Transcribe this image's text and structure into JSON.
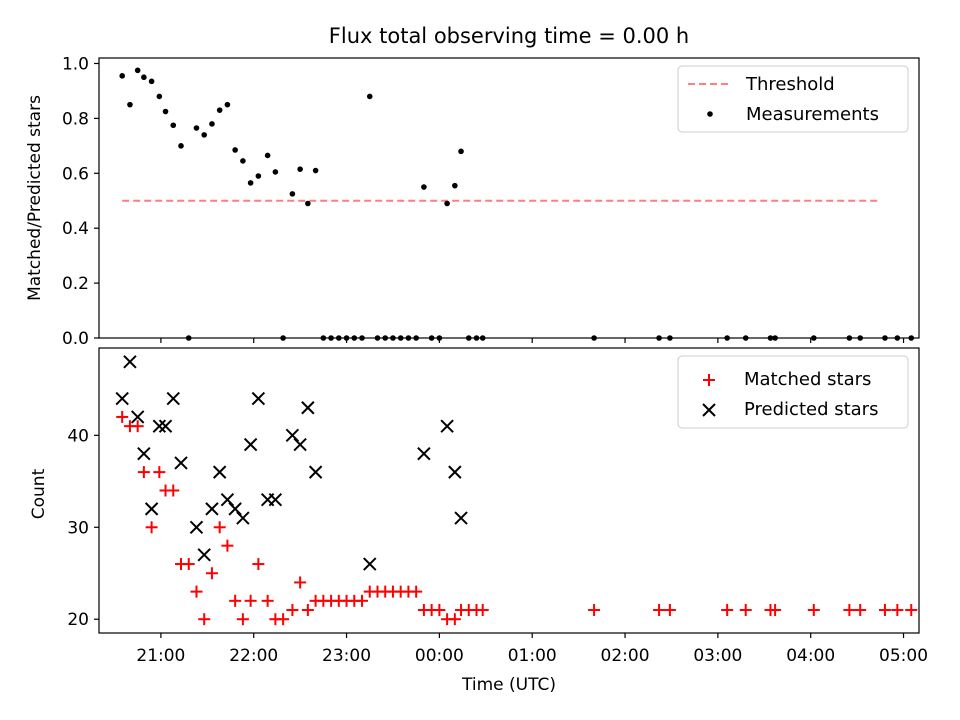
{
  "chart_data": [
    {
      "type": "scatter",
      "title": "Flux total observing time = 0.00 h",
      "xlabel": "",
      "ylabel": "Matched/Predicted stars",
      "ylim": [
        0.0,
        1.02
      ],
      "yticks": [
        "0.0",
        "0.2",
        "0.4",
        "0.6",
        "0.8",
        "1.0"
      ],
      "xlim": [
        "20:20",
        "05:10"
      ],
      "xticks": [
        "21:00",
        "22:00",
        "23:00",
        "00:00",
        "01:00",
        "02:00",
        "03:00",
        "04:00",
        "05:00"
      ],
      "xticklabels_shown": false,
      "legend_position": "top-right",
      "threshold": {
        "name": "Threshold",
        "value": 0.5,
        "x_start": "20:35",
        "x_end": "04:43",
        "color": "#ff7f7f",
        "style": "dashed"
      },
      "series": [
        {
          "name": "Measurements",
          "color": "#000000",
          "marker": "dot",
          "points": [
            [
              "20:35",
              0.955
            ],
            [
              "20:40",
              0.85
            ],
            [
              "20:45",
              0.975
            ],
            [
              "20:49",
              0.95
            ],
            [
              "20:54",
              0.935
            ],
            [
              "20:59",
              0.88
            ],
            [
              "21:03",
              0.825
            ],
            [
              "21:08",
              0.775
            ],
            [
              "21:13",
              0.7
            ],
            [
              "21:18",
              0.0
            ],
            [
              "21:23",
              0.765
            ],
            [
              "21:28",
              0.74
            ],
            [
              "21:33",
              0.78
            ],
            [
              "21:38",
              0.83
            ],
            [
              "21:43",
              0.85
            ],
            [
              "21:48",
              0.685
            ],
            [
              "21:53",
              0.645
            ],
            [
              "21:58",
              0.565
            ],
            [
              "22:03",
              0.59
            ],
            [
              "22:09",
              0.665
            ],
            [
              "22:14",
              0.605
            ],
            [
              "22:19",
              0.0
            ],
            [
              "22:25",
              0.525
            ],
            [
              "22:30",
              0.615
            ],
            [
              "22:35",
              0.49
            ],
            [
              "22:40",
              0.61
            ],
            [
              "22:45",
              0.0
            ],
            [
              "22:50",
              0.0
            ],
            [
              "22:55",
              0.0
            ],
            [
              "23:00",
              0.0
            ],
            [
              "23:05",
              0.0
            ],
            [
              "23:10",
              0.0
            ],
            [
              "23:15",
              0.88
            ],
            [
              "23:20",
              0.0
            ],
            [
              "23:25",
              0.0
            ],
            [
              "23:30",
              0.0
            ],
            [
              "23:35",
              0.0
            ],
            [
              "23:40",
              0.0
            ],
            [
              "23:45",
              0.0
            ],
            [
              "23:50",
              0.55
            ],
            [
              "23:55",
              0.0
            ],
            [
              "00:00",
              0.0
            ],
            [
              "00:05",
              0.49
            ],
            [
              "00:10",
              0.555
            ],
            [
              "00:14",
              0.68
            ],
            [
              "00:19",
              0.0
            ],
            [
              "00:24",
              0.0
            ],
            [
              "00:28",
              0.0
            ],
            [
              "01:40",
              0.0
            ],
            [
              "02:22",
              0.0
            ],
            [
              "02:29",
              0.0
            ],
            [
              "03:06",
              0.0
            ],
            [
              "03:18",
              0.0
            ],
            [
              "03:34",
              0.0
            ],
            [
              "03:37",
              0.0
            ],
            [
              "04:02",
              0.0
            ],
            [
              "04:25",
              0.0
            ],
            [
              "04:32",
              0.0
            ],
            [
              "04:48",
              0.0
            ],
            [
              "04:56",
              0.0
            ],
            [
              "05:05",
              0.0
            ]
          ]
        }
      ]
    },
    {
      "type": "scatter",
      "title": "",
      "xlabel": "Time (UTC)",
      "ylabel": "Count",
      "ylim": [
        18.5,
        49.5
      ],
      "yticks": [
        "20",
        "30",
        "40"
      ],
      "xlim": [
        "20:20",
        "05:10"
      ],
      "xticks": [
        "21:00",
        "22:00",
        "23:00",
        "00:00",
        "01:00",
        "02:00",
        "03:00",
        "04:00",
        "05:00"
      ],
      "legend_position": "top-right",
      "series": [
        {
          "name": "Matched stars",
          "color": "#ff0000",
          "marker": "plus",
          "points": [
            [
              "20:35",
              42
            ],
            [
              "20:40",
              41
            ],
            [
              "20:45",
              41
            ],
            [
              "20:49",
              36
            ],
            [
              "20:54",
              30
            ],
            [
              "20:59",
              36
            ],
            [
              "21:03",
              34
            ],
            [
              "21:08",
              34
            ],
            [
              "21:13",
              26
            ],
            [
              "21:18",
              26
            ],
            [
              "21:23",
              23
            ],
            [
              "21:28",
              20
            ],
            [
              "21:33",
              25
            ],
            [
              "21:38",
              30
            ],
            [
              "21:43",
              28
            ],
            [
              "21:48",
              22
            ],
            [
              "21:53",
              20
            ],
            [
              "21:58",
              22
            ],
            [
              "22:03",
              26
            ],
            [
              "22:09",
              22
            ],
            [
              "22:14",
              20
            ],
            [
              "22:19",
              20
            ],
            [
              "22:25",
              21
            ],
            [
              "22:30",
              24
            ],
            [
              "22:35",
              21
            ],
            [
              "22:40",
              22
            ],
            [
              "22:45",
              22
            ],
            [
              "22:50",
              22
            ],
            [
              "22:55",
              22
            ],
            [
              "23:00",
              22
            ],
            [
              "23:05",
              22
            ],
            [
              "23:10",
              22
            ],
            [
              "23:15",
              23
            ],
            [
              "23:20",
              23
            ],
            [
              "23:25",
              23
            ],
            [
              "23:30",
              23
            ],
            [
              "23:35",
              23
            ],
            [
              "23:40",
              23
            ],
            [
              "23:45",
              23
            ],
            [
              "23:50",
              21
            ],
            [
              "23:55",
              21
            ],
            [
              "00:00",
              21
            ],
            [
              "00:05",
              20
            ],
            [
              "00:10",
              20
            ],
            [
              "00:14",
              21
            ],
            [
              "00:19",
              21
            ],
            [
              "00:24",
              21
            ],
            [
              "00:28",
              21
            ],
            [
              "01:40",
              21
            ],
            [
              "02:22",
              21
            ],
            [
              "02:29",
              21
            ],
            [
              "03:06",
              21
            ],
            [
              "03:18",
              21
            ],
            [
              "03:34",
              21
            ],
            [
              "03:37",
              21
            ],
            [
              "04:02",
              21
            ],
            [
              "04:25",
              21
            ],
            [
              "04:32",
              21
            ],
            [
              "04:48",
              21
            ],
            [
              "04:56",
              21
            ],
            [
              "05:05",
              21
            ]
          ]
        },
        {
          "name": "Predicted stars",
          "color": "#000000",
          "marker": "x",
          "points": [
            [
              "20:35",
              44
            ],
            [
              "20:40",
              48
            ],
            [
              "20:45",
              42
            ],
            [
              "20:49",
              38
            ],
            [
              "20:54",
              32
            ],
            [
              "20:59",
              41
            ],
            [
              "21:03",
              41
            ],
            [
              "21:08",
              44
            ],
            [
              "21:13",
              37
            ],
            [
              "21:23",
              30
            ],
            [
              "21:28",
              27
            ],
            [
              "21:33",
              32
            ],
            [
              "21:38",
              36
            ],
            [
              "21:43",
              33
            ],
            [
              "21:48",
              32
            ],
            [
              "21:53",
              31
            ],
            [
              "21:58",
              39
            ],
            [
              "22:03",
              44
            ],
            [
              "22:09",
              33
            ],
            [
              "22:14",
              33
            ],
            [
              "22:25",
              40
            ],
            [
              "22:30",
              39
            ],
            [
              "22:35",
              43
            ],
            [
              "22:40",
              36
            ],
            [
              "23:15",
              26
            ],
            [
              "23:50",
              38
            ],
            [
              "00:05",
              41
            ],
            [
              "00:10",
              36
            ],
            [
              "00:14",
              31
            ]
          ]
        }
      ]
    }
  ]
}
